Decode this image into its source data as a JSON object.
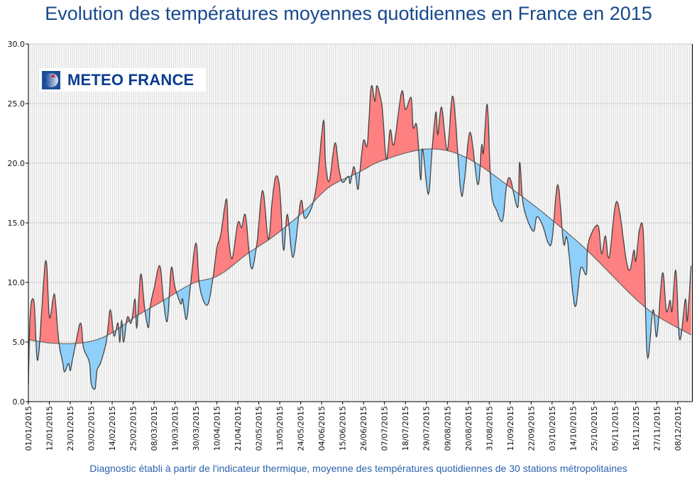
{
  "title": "Evolution des températures moyennes quotidiennes en France en 2015",
  "footer": "Diagnostic établi à partir de l'indicateur thermique, moyenne des températures quotidiennes de 30 stations métropolitaines",
  "logo": {
    "text": "METEO FRANCE",
    "icon": "globe-logo-icon"
  },
  "colors": {
    "title": "#17498c",
    "above_normal": "#ff8080",
    "below_normal": "#8fd0fa",
    "line": "#555555",
    "footer": "#2d62ad"
  },
  "chart_data": {
    "type": "area",
    "title": "Evolution des températures moyennes quotidiennes en France en 2015",
    "ylim": [
      0,
      30
    ],
    "y_ticks": [
      "0.0",
      "5.0",
      "10.0",
      "15.0",
      "20.0",
      "25.0",
      "30.0"
    ],
    "x_ticks": [
      "01/01/2015",
      "12/01/2015",
      "23/01/2015",
      "03/02/2015",
      "14/02/2015",
      "25/02/2015",
      "08/03/2015",
      "19/03/2015",
      "30/03/2015",
      "10/04/2015",
      "21/04/2015",
      "02/05/2015",
      "13/05/2015",
      "24/05/2015",
      "04/06/2015",
      "15/06/2015",
      "26/06/2015",
      "07/07/2015",
      "18/07/2015",
      "29/07/2015",
      "09/08/2015",
      "20/08/2015",
      "31/08/2015",
      "11/09/2015",
      "22/09/2015",
      "03/10/2015",
      "14/10/2015",
      "25/10/2015",
      "05/11/2015",
      "16/11/2015",
      "27/11/2015",
      "08/12/2015"
    ],
    "grid": true,
    "legend": "none",
    "fill_above_normal": "#ff8080",
    "fill_below_normal": "#8fd0fa",
    "series": [
      {
        "role": "daily_mean",
        "points": [
          [
            "2015-01-01",
            1.5
          ],
          [
            "2015-01-02",
            7.5
          ],
          [
            "2015-01-04",
            8.3
          ],
          [
            "2015-01-06",
            3.5
          ],
          [
            "2015-01-10",
            11.8
          ],
          [
            "2015-01-12",
            7.1
          ],
          [
            "2015-01-14",
            8.7
          ],
          [
            "2015-01-15",
            8.7
          ],
          [
            "2015-01-17",
            5.0
          ],
          [
            "2015-01-19",
            3.3
          ],
          [
            "2015-01-20",
            2.5
          ],
          [
            "2015-01-22",
            3.2
          ],
          [
            "2015-01-23",
            2.6
          ],
          [
            "2015-01-24",
            3.4
          ],
          [
            "2015-01-26",
            5.0
          ],
          [
            "2015-01-28",
            6.5
          ],
          [
            "2015-01-29",
            6.2
          ],
          [
            "2015-01-30",
            4.5
          ],
          [
            "2015-02-02",
            3.3
          ],
          [
            "2015-02-03",
            1.5
          ],
          [
            "2015-02-05",
            1.1
          ],
          [
            "2015-02-06",
            2.6
          ],
          [
            "2015-02-08",
            3.3
          ],
          [
            "2015-02-11",
            5.1
          ],
          [
            "2015-02-13",
            7.7
          ],
          [
            "2015-02-15",
            5.5
          ],
          [
            "2015-02-17",
            6.6
          ],
          [
            "2015-02-18",
            5.0
          ],
          [
            "2015-02-19",
            6.8
          ],
          [
            "2015-02-20",
            5.0
          ],
          [
            "2015-02-22",
            7.1
          ],
          [
            "2015-02-24",
            6.6
          ],
          [
            "2015-02-26",
            8.6
          ],
          [
            "2015-02-27",
            6.2
          ],
          [
            "2015-03-01",
            10.7
          ],
          [
            "2015-03-03",
            7.9
          ],
          [
            "2015-03-05",
            6.2
          ],
          [
            "2015-03-06",
            8.0
          ],
          [
            "2015-03-08",
            9.5
          ],
          [
            "2015-03-11",
            11.4
          ],
          [
            "2015-03-13",
            8.4
          ],
          [
            "2015-03-15",
            6.8
          ],
          [
            "2015-03-17",
            11.2
          ],
          [
            "2015-03-19",
            9.6
          ],
          [
            "2015-03-22",
            8.2
          ],
          [
            "2015-03-23",
            8.6
          ],
          [
            "2015-03-25",
            6.9
          ],
          [
            "2015-03-27",
            9.6
          ],
          [
            "2015-03-30",
            13.3
          ],
          [
            "2015-04-01",
            9.6
          ],
          [
            "2015-04-05",
            8.1
          ],
          [
            "2015-04-08",
            10.5
          ],
          [
            "2015-04-10",
            12.9
          ],
          [
            "2015-04-12",
            14.0
          ],
          [
            "2015-04-15",
            17.0
          ],
          [
            "2015-04-16",
            14.0
          ],
          [
            "2015-04-18",
            12.0
          ],
          [
            "2015-04-21",
            15.0
          ],
          [
            "2015-04-23",
            14.6
          ],
          [
            "2015-04-25",
            15.6
          ],
          [
            "2015-04-28",
            11.2
          ],
          [
            "2015-05-01",
            13.3
          ],
          [
            "2015-05-04",
            17.7
          ],
          [
            "2015-05-07",
            13.6
          ],
          [
            "2015-05-09",
            16.8
          ],
          [
            "2015-05-11",
            18.9
          ],
          [
            "2015-05-13",
            17.8
          ],
          [
            "2015-05-15",
            12.7
          ],
          [
            "2015-05-17",
            15.7
          ],
          [
            "2015-05-20",
            12.1
          ],
          [
            "2015-05-24",
            16.8
          ],
          [
            "2015-05-26",
            15.4
          ],
          [
            "2015-05-29",
            16.0
          ],
          [
            "2015-05-31",
            17.0
          ],
          [
            "2015-06-02",
            19.0
          ],
          [
            "2015-06-05",
            23.6
          ],
          [
            "2015-06-06",
            20.1
          ],
          [
            "2015-06-08",
            18.5
          ],
          [
            "2015-06-11",
            21.7
          ],
          [
            "2015-06-13",
            19.6
          ],
          [
            "2015-06-15",
            18.4
          ],
          [
            "2015-06-18",
            18.9
          ],
          [
            "2015-06-19",
            18.3
          ],
          [
            "2015-06-21",
            19.7
          ],
          [
            "2015-06-23",
            17.8
          ],
          [
            "2015-06-24",
            19.2
          ],
          [
            "2015-06-26",
            21.9
          ],
          [
            "2015-06-28",
            21.6
          ],
          [
            "2015-06-30",
            26.4
          ],
          [
            "2015-07-02",
            25.2
          ],
          [
            "2015-07-03",
            26.5
          ],
          [
            "2015-07-05",
            25.4
          ],
          [
            "2015-07-06",
            24.3
          ],
          [
            "2015-07-08",
            20.3
          ],
          [
            "2015-07-10",
            22.8
          ],
          [
            "2015-07-12",
            21.6
          ],
          [
            "2015-07-16",
            26.0
          ],
          [
            "2015-07-18",
            24.5
          ],
          [
            "2015-07-21",
            25.5
          ],
          [
            "2015-07-22",
            23.0
          ],
          [
            "2015-07-24",
            23.1
          ],
          [
            "2015-07-26",
            18.6
          ],
          [
            "2015-07-27",
            21.2
          ],
          [
            "2015-07-30",
            17.4
          ],
          [
            "2015-08-01",
            21.2
          ],
          [
            "2015-08-03",
            24.3
          ],
          [
            "2015-08-04",
            22.4
          ],
          [
            "2015-08-06",
            24.7
          ],
          [
            "2015-08-09",
            21.1
          ],
          [
            "2015-08-12",
            25.6
          ],
          [
            "2015-08-16",
            17.7
          ],
          [
            "2015-08-18",
            18.6
          ],
          [
            "2015-08-21",
            22.6
          ],
          [
            "2015-08-25",
            18.2
          ],
          [
            "2015-08-27",
            21.5
          ],
          [
            "2015-08-28",
            20.9
          ],
          [
            "2015-08-30",
            24.9
          ],
          [
            "2015-09-01",
            17.8
          ],
          [
            "2015-09-04",
            16.0
          ],
          [
            "2015-09-07",
            15.2
          ],
          [
            "2015-09-09",
            18.0
          ],
          [
            "2015-09-11",
            18.7
          ],
          [
            "2015-09-15",
            16.3
          ],
          [
            "2015-09-16",
            20.1
          ],
          [
            "2015-09-18",
            16.4
          ],
          [
            "2015-09-23",
            14.3
          ],
          [
            "2015-09-25",
            15.5
          ],
          [
            "2015-09-28",
            14.8
          ],
          [
            "2015-10-01",
            13.3
          ],
          [
            "2015-10-03",
            13.6
          ],
          [
            "2015-10-06",
            18.2
          ],
          [
            "2015-10-09",
            13.3
          ],
          [
            "2015-10-11",
            13.6
          ],
          [
            "2015-10-15",
            8.0
          ],
          [
            "2015-10-18",
            11.2
          ],
          [
            "2015-10-21",
            10.7
          ],
          [
            "2015-10-22",
            13.3
          ],
          [
            "2015-10-27",
            14.8
          ],
          [
            "2015-10-29",
            12.4
          ],
          [
            "2015-10-31",
            13.9
          ],
          [
            "2015-11-02",
            12.1
          ],
          [
            "2015-11-06",
            16.8
          ],
          [
            "2015-11-11",
            11.8
          ],
          [
            "2015-11-13",
            11.1
          ],
          [
            "2015-11-15",
            12.7
          ],
          [
            "2015-11-16",
            11.8
          ],
          [
            "2015-11-18",
            14.5
          ],
          [
            "2015-11-20",
            13.9
          ],
          [
            "2015-11-22",
            3.8
          ],
          [
            "2015-11-25",
            7.7
          ],
          [
            "2015-11-27",
            5.5
          ],
          [
            "2015-11-30",
            10.8
          ],
          [
            "2015-12-02",
            7.6
          ],
          [
            "2015-12-04",
            8.5
          ],
          [
            "2015-12-05",
            7.6
          ],
          [
            "2015-12-07",
            11.0
          ],
          [
            "2015-12-09",
            5.2
          ],
          [
            "2015-12-12",
            8.6
          ],
          [
            "2015-12-13",
            6.8
          ],
          [
            "2015-12-15",
            11.4
          ]
        ]
      },
      {
        "role": "normal",
        "points": [
          [
            "2015-01-01",
            5.2
          ],
          [
            "2015-01-14",
            4.9
          ],
          [
            "2015-01-30",
            4.95
          ],
          [
            "2015-02-12",
            5.6
          ],
          [
            "2015-02-26",
            7.1
          ],
          [
            "2015-03-12",
            8.4
          ],
          [
            "2015-03-28",
            9.9
          ],
          [
            "2015-04-11",
            10.6
          ],
          [
            "2015-04-26",
            12.4
          ],
          [
            "2015-05-10",
            13.9
          ],
          [
            "2015-05-26",
            16.0
          ],
          [
            "2015-06-08",
            18.0
          ],
          [
            "2015-06-23",
            19.2
          ],
          [
            "2015-07-07",
            20.3
          ],
          [
            "2015-07-31",
            21.2
          ],
          [
            "2015-08-21",
            20.3
          ],
          [
            "2015-09-19",
            17.0
          ],
          [
            "2015-10-04",
            15.1
          ],
          [
            "2015-10-22",
            12.6
          ],
          [
            "2015-11-21",
            7.9
          ],
          [
            "2015-12-15",
            5.6
          ]
        ]
      }
    ]
  }
}
